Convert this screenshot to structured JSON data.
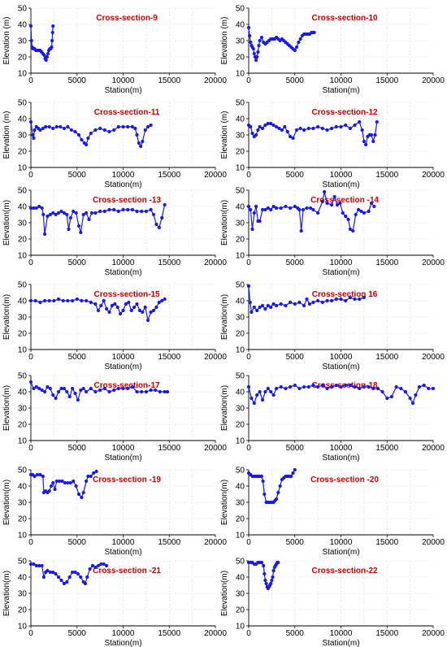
{
  "colors": {
    "series": "#1a1ae6",
    "title": "#cc0000",
    "axis": "#000000",
    "grid": "#d9d9d9"
  },
  "chart_data": [
    {
      "type": "line",
      "title": "Cross-section-9",
      "xlabel": "Station(m)",
      "ylabel": "Elevation (m)",
      "xlim": [
        0,
        20000
      ],
      "ylim": [
        10,
        50
      ],
      "xticks": [
        0,
        5000,
        10000,
        15000,
        20000
      ],
      "yticks": [
        10,
        20,
        30,
        40,
        50
      ],
      "grid": true,
      "x": [
        0,
        60,
        140,
        250,
        400,
        550,
        700,
        850,
        1000,
        1150,
        1300,
        1450,
        1550,
        1650,
        1750,
        1850,
        1950,
        2050,
        2150,
        2250,
        2300,
        2350,
        2400
      ],
      "y": [
        39,
        30,
        26,
        25,
        25,
        24,
        24,
        24,
        24,
        23,
        22,
        21,
        19,
        18,
        20,
        22,
        24,
        25,
        25,
        26,
        30,
        35,
        39
      ]
    },
    {
      "type": "line",
      "title": "Cross-section-10",
      "xlabel": "Station(m)",
      "ylabel": "Elevation (m)",
      "xlim": [
        0,
        20000
      ],
      "ylim": [
        10,
        50
      ],
      "xticks": [
        0,
        5000,
        10000,
        15000,
        20000
      ],
      "yticks": [
        10,
        20,
        30,
        40,
        50
      ],
      "grid": true,
      "x": [
        0,
        100,
        200,
        300,
        400,
        500,
        600,
        700,
        800,
        900,
        1000,
        1100,
        1200,
        1400,
        1600,
        1800,
        2000,
        2200,
        2400,
        2600,
        2800,
        3000,
        3200,
        3400,
        3600,
        3800,
        4000,
        4200,
        4400,
        4600,
        4800,
        5000,
        5200,
        5400,
        5600,
        5800,
        6000,
        6200,
        6400,
        6600,
        6800,
        7000,
        7100
      ],
      "y": [
        38,
        33,
        29,
        27,
        26,
        25,
        22,
        20,
        18,
        20,
        23,
        27,
        30,
        32,
        29,
        28,
        29,
        30,
        31,
        31,
        31,
        32,
        31,
        30,
        31,
        30,
        29,
        28,
        27,
        26,
        25,
        24,
        26,
        29,
        31,
        33,
        34,
        34,
        34,
        34,
        35,
        35,
        35
      ]
    },
    {
      "type": "line",
      "title": "Cross-section-11",
      "xlabel": "Station(m)",
      "ylabel": "Elevation (m)",
      "xlim": [
        0,
        20000
      ],
      "ylim": [
        10,
        50
      ],
      "xticks": [
        0,
        5000,
        10000,
        15000,
        20000
      ],
      "yticks": [
        10,
        20,
        30,
        40,
        50
      ],
      "grid": true,
      "x": [
        0,
        200,
        300,
        400,
        600,
        800,
        1000,
        1300,
        1600,
        2000,
        2400,
        2800,
        3200,
        3600,
        4000,
        4400,
        4800,
        5200,
        5500,
        5800,
        6000,
        6200,
        6500,
        7000,
        7500,
        8000,
        8500,
        9000,
        9500,
        10000,
        10500,
        11000,
        11300,
        11500,
        11700,
        11900,
        12100,
        12400,
        12700,
        13000
      ],
      "y": [
        38,
        30,
        28,
        33,
        35,
        34,
        33,
        34,
        35,
        35,
        34,
        35,
        35,
        34,
        35,
        33,
        32,
        30,
        27,
        25,
        24,
        28,
        31,
        33,
        34,
        33,
        32,
        33,
        35,
        35,
        35,
        35,
        34,
        30,
        25,
        23,
        26,
        33,
        35,
        36
      ]
    },
    {
      "type": "line",
      "title": "Cross-section-12",
      "xlabel": "Station(m)",
      "ylabel": "Elevation (m)",
      "xlim": [
        0,
        20000
      ],
      "ylim": [
        10,
        50
      ],
      "xticks": [
        0,
        5000,
        10000,
        15000,
        20000
      ],
      "yticks": [
        10,
        20,
        30,
        40,
        50
      ],
      "grid": true,
      "x": [
        0,
        200,
        400,
        600,
        800,
        1000,
        1200,
        1500,
        1800,
        2100,
        2400,
        2700,
        3000,
        3300,
        3600,
        3900,
        4200,
        4500,
        4800,
        5200,
        5600,
        6000,
        6500,
        7000,
        7500,
        8000,
        8500,
        9000,
        9500,
        10000,
        10500,
        11000,
        11500,
        12000,
        12300,
        12500,
        12700,
        12900,
        13100,
        13300,
        13500,
        13700,
        13900
      ],
      "y": [
        36,
        35,
        31,
        29,
        30,
        33,
        35,
        34,
        36,
        37,
        37,
        36,
        35,
        34,
        33,
        35,
        32,
        29,
        28,
        33,
        34,
        33,
        34,
        34,
        35,
        34,
        33,
        34,
        35,
        35,
        36,
        34,
        36,
        38,
        33,
        26,
        24,
        29,
        30,
        30,
        26,
        30,
        38
      ]
    },
    {
      "type": "line",
      "title": "Cross-section -13",
      "xlabel": "Station(m)",
      "ylabel": "Elevation(m)",
      "xlim": [
        0,
        20000
      ],
      "ylim": [
        10,
        50
      ],
      "xticks": [
        0,
        5000,
        10000,
        15000,
        20000
      ],
      "yticks": [
        10,
        20,
        30,
        40,
        50
      ],
      "grid": true,
      "x": [
        0,
        300,
        600,
        900,
        1200,
        1350,
        1500,
        1800,
        2100,
        2400,
        2700,
        3000,
        3300,
        3600,
        3900,
        4100,
        4300,
        4600,
        4900,
        5200,
        5400,
        5700,
        6000,
        6300,
        6600,
        7000,
        7500,
        8000,
        8500,
        9000,
        9500,
        10000,
        10500,
        11000,
        11500,
        12000,
        12500,
        13000,
        13300,
        13600,
        13900,
        14200,
        14500
      ],
      "y": [
        39,
        39,
        39,
        40,
        39,
        35,
        23,
        34,
        35,
        36,
        35,
        36,
        37,
        36,
        35,
        26,
        33,
        37,
        36,
        28,
        24,
        35,
        36,
        32,
        36,
        36,
        37,
        37,
        38,
        38,
        37,
        38,
        38,
        38,
        37,
        37,
        37,
        38,
        35,
        29,
        27,
        33,
        41
      ]
    },
    {
      "type": "line",
      "title": "Cross-section -14",
      "xlabel": "Station(m)",
      "ylabel": "Elevation(m)",
      "xlim": [
        0,
        20000
      ],
      "ylim": [
        10,
        50
      ],
      "xticks": [
        0,
        5000,
        10000,
        15000,
        20000
      ],
      "yticks": [
        10,
        20,
        30,
        40,
        50
      ],
      "grid": true,
      "x": [
        0,
        200,
        400,
        600,
        800,
        1000,
        1200,
        1500,
        1800,
        2100,
        2400,
        2700,
        3000,
        3500,
        4000,
        4500,
        5000,
        5300,
        5500,
        5700,
        5900,
        6300,
        6700,
        7000,
        7500,
        8000,
        8200,
        8500,
        9000,
        9300,
        9600,
        9900,
        10200,
        10500,
        10800,
        11000,
        11300,
        11600,
        11900,
        12200,
        12500,
        13000,
        13300,
        13600
      ],
      "y": [
        40,
        38,
        26,
        36,
        40,
        31,
        31,
        38,
        38,
        39,
        38,
        40,
        39,
        39,
        40,
        39,
        40,
        39,
        38,
        25,
        38,
        39,
        39,
        38,
        36,
        43,
        49,
        42,
        41,
        46,
        41,
        42,
        36,
        34,
        32,
        26,
        25,
        35,
        38,
        37,
        36,
        37,
        42,
        40
      ]
    },
    {
      "type": "line",
      "title": "Cross-section-15",
      "xlabel": "Station(m)",
      "ylabel": "Elevation(m)",
      "xlim": [
        0,
        20000
      ],
      "ylim": [
        10,
        50
      ],
      "xticks": [
        0,
        5000,
        10000,
        15000,
        20000
      ],
      "yticks": [
        10,
        20,
        30,
        40,
        50
      ],
      "grid": true,
      "x": [
        0,
        500,
        1000,
        1500,
        2000,
        2500,
        3000,
        3500,
        4000,
        4500,
        5000,
        5500,
        6000,
        6500,
        7000,
        7300,
        7600,
        7900,
        8200,
        8500,
        8800,
        9100,
        9400,
        9700,
        10000,
        10300,
        10600,
        10900,
        11200,
        11500,
        11800,
        12100,
        12400,
        12700,
        13000,
        13300,
        13600,
        13900,
        14200,
        14500
      ],
      "y": [
        40,
        40,
        39,
        40,
        40,
        40,
        41,
        40,
        40,
        40,
        41,
        40,
        40,
        39,
        38,
        34,
        37,
        40,
        35,
        33,
        37,
        38,
        36,
        32,
        34,
        38,
        39,
        34,
        36,
        38,
        34,
        33,
        36,
        28,
        33,
        34,
        36,
        39,
        40,
        41
      ]
    },
    {
      "type": "line",
      "title": "Cross-section 16",
      "xlabel": "Station(m)",
      "ylabel": "Elevation(m)",
      "xlim": [
        0,
        20000
      ],
      "ylim": [
        10,
        50
      ],
      "xticks": [
        0,
        5000,
        10000,
        15000,
        20000
      ],
      "yticks": [
        10,
        20,
        30,
        40,
        50
      ],
      "grid": true,
      "x": [
        0,
        150,
        300,
        600,
        900,
        1200,
        1500,
        1800,
        2100,
        2400,
        2700,
        3000,
        3500,
        4000,
        4500,
        5000,
        5500,
        6000,
        6300,
        6600,
        7000,
        7500,
        8000,
        8500,
        9000,
        9500,
        10000,
        10500,
        11000,
        11500,
        12000,
        12500
      ],
      "y": [
        49,
        39,
        33,
        36,
        34,
        36,
        37,
        35,
        37,
        36,
        38,
        37,
        38,
        37,
        39,
        38,
        39,
        37,
        41,
        38,
        39,
        40,
        39,
        40,
        40,
        41,
        41,
        40,
        42,
        41,
        41,
        42
      ]
    },
    {
      "type": "line",
      "title": "Cross-section-17",
      "xlabel": "Station(m)",
      "ylabel": "Elevation(m)",
      "xlim": [
        0,
        20000
      ],
      "ylim": [
        10,
        50
      ],
      "xticks": [
        0,
        5000,
        10000,
        15000,
        20000
      ],
      "yticks": [
        10,
        20,
        30,
        40,
        50
      ],
      "grid": true,
      "x": [
        0,
        300,
        600,
        900,
        1200,
        1500,
        1800,
        2100,
        2400,
        2700,
        3000,
        3300,
        3600,
        3900,
        4200,
        4500,
        4800,
        5100,
        5400,
        5700,
        6000,
        6500,
        7000,
        7500,
        8000,
        8500,
        9000,
        9500,
        10000,
        10500,
        11000,
        11500,
        12000,
        12500,
        13000,
        13500,
        14000,
        14500,
        14800
      ],
      "y": [
        46,
        42,
        43,
        42,
        41,
        40,
        43,
        42,
        38,
        36,
        40,
        42,
        42,
        40,
        37,
        42,
        39,
        35,
        41,
        42,
        40,
        42,
        40,
        41,
        42,
        40,
        41,
        42,
        42,
        42,
        43,
        40,
        40,
        40,
        41,
        41,
        40,
        40,
        40
      ]
    },
    {
      "type": "line",
      "title": "Cross-section-18",
      "xlabel": "Station(m)",
      "ylabel": "Elevation(m)",
      "xlim": [
        0,
        20000
      ],
      "ylim": [
        10,
        50
      ],
      "xticks": [
        0,
        5000,
        10000,
        15000,
        20000
      ],
      "yticks": [
        10,
        20,
        30,
        40,
        50
      ],
      "grid": true,
      "x": [
        0,
        300,
        600,
        900,
        1200,
        1500,
        1800,
        2100,
        2400,
        2700,
        3000,
        3500,
        4000,
        4500,
        5000,
        5500,
        6000,
        6500,
        7000,
        7500,
        8000,
        8500,
        9000,
        9500,
        10000,
        10500,
        11000,
        11500,
        12000,
        12500,
        13000,
        13500,
        14000,
        14500,
        15000,
        15500,
        16000,
        16500,
        17000,
        17500,
        17800,
        18100,
        18500,
        19000,
        19500,
        20000
      ],
      "y": [
        43,
        36,
        33,
        38,
        40,
        35,
        40,
        42,
        40,
        38,
        42,
        43,
        42,
        43,
        44,
        42,
        43,
        43,
        44,
        43,
        44,
        42,
        43,
        44,
        43,
        44,
        44,
        43,
        42,
        43,
        43,
        42,
        42,
        40,
        36,
        37,
        43,
        42,
        40,
        36,
        33,
        38,
        43,
        44,
        42,
        42
      ]
    },
    {
      "type": "line",
      "title": "Cross-section -19",
      "xlabel": "Station(m)",
      "ylabel": "Elevation(m)",
      "xlim": [
        0,
        20000
      ],
      "ylim": [
        10,
        50
      ],
      "xticks": [
        0,
        5000,
        10000,
        15000,
        20000
      ],
      "yticks": [
        10,
        20,
        30,
        40,
        50
      ],
      "grid": true,
      "x": [
        0,
        200,
        400,
        700,
        1000,
        1300,
        1400,
        1600,
        1800,
        2000,
        2200,
        2400,
        2600,
        2800,
        3100,
        3400,
        3700,
        4000,
        4300,
        4600,
        4900,
        5200,
        5500,
        5700,
        6000,
        6200,
        6500,
        6800,
        7100
      ],
      "y": [
        47,
        47,
        46,
        47,
        47,
        46,
        36,
        37,
        36,
        37,
        40,
        42,
        38,
        43,
        43,
        43,
        42,
        42,
        42,
        43,
        40,
        35,
        33,
        36,
        43,
        46,
        46,
        48,
        49
      ]
    },
    {
      "type": "line",
      "title": "Cross-section -20",
      "xlabel": "Station(m)",
      "ylabel": "Elevation(m)",
      "xlim": [
        0,
        20000
      ],
      "ylim": [
        10,
        50
      ],
      "xticks": [
        0,
        5000,
        10000,
        15000,
        20000
      ],
      "yticks": [
        10,
        20,
        30,
        40,
        50
      ],
      "grid": true,
      "x": [
        0,
        200,
        400,
        600,
        800,
        1000,
        1200,
        1400,
        1550,
        1700,
        1900,
        2100,
        2300,
        2500,
        2700,
        2850,
        3000,
        3200,
        3400,
        3600,
        3800,
        4000,
        4200,
        4400,
        4600,
        4800,
        5000
      ],
      "y": [
        48,
        47,
        46,
        46,
        46,
        46,
        46,
        46,
        43,
        35,
        30,
        30,
        30,
        30,
        30,
        31,
        32,
        36,
        40,
        44,
        45,
        46,
        46,
        46,
        46,
        48,
        50
      ]
    },
    {
      "type": "line",
      "title": "Cross-section -21",
      "xlabel": "Station(m)",
      "ylabel": "Elevation(m)",
      "xlim": [
        0,
        20000
      ],
      "ylim": [
        10,
        50
      ],
      "xticks": [
        0,
        5000,
        10000,
        15000,
        20000
      ],
      "yticks": [
        10,
        20,
        30,
        40,
        50
      ],
      "grid": true,
      "x": [
        0,
        300,
        600,
        900,
        1200,
        1400,
        1600,
        1800,
        2100,
        2400,
        2700,
        3000,
        3300,
        3600,
        3900,
        4200,
        4500,
        4800,
        5100,
        5400,
        5700,
        5900,
        6100,
        6400,
        6700,
        7000,
        7300,
        7600,
        7900,
        8200
      ],
      "y": [
        48,
        48,
        47,
        47,
        47,
        40,
        43,
        44,
        43,
        43,
        42,
        40,
        38,
        36,
        37,
        40,
        43,
        43,
        42,
        40,
        37,
        36,
        40,
        45,
        47,
        46,
        47,
        48,
        48,
        47
      ]
    },
    {
      "type": "line",
      "title": "Cross-section-22",
      "xlabel": "Station(m)",
      "ylabel": "Elevation(m)",
      "xlim": [
        0,
        20000
      ],
      "ylim": [
        10,
        50
      ],
      "xticks": [
        0,
        5000,
        10000,
        15000,
        20000
      ],
      "yticks": [
        10,
        20,
        30,
        40,
        50
      ],
      "grid": true,
      "x": [
        0,
        200,
        400,
        600,
        800,
        1000,
        1200,
        1400,
        1600,
        1700,
        1800,
        1900,
        2000,
        2100,
        2200,
        2300,
        2400,
        2500,
        2600,
        2700,
        2800,
        2900,
        3000,
        3100,
        3200
      ],
      "y": [
        49,
        49,
        49,
        48,
        48,
        49,
        49,
        49,
        47,
        42,
        38,
        36,
        34,
        33,
        34,
        35,
        36,
        38,
        40,
        44,
        46,
        47,
        48,
        49,
        49
      ]
    }
  ]
}
